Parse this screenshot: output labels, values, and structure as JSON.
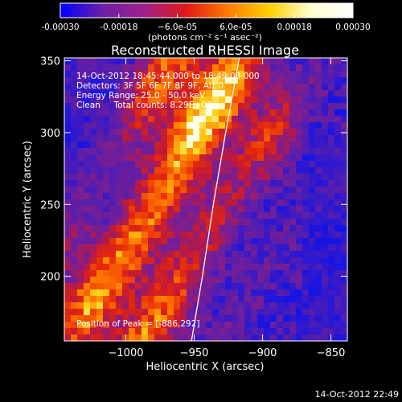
{
  "chart_data": {
    "type": "heatmap",
    "title": "Reconstructed RHESSI Image",
    "xlabel": "Heliocentric X (arcsec)",
    "ylabel": "Heliocentric Y (arcsec)",
    "xlim": [
      -1045,
      -838
    ],
    "ylim": [
      155,
      352
    ],
    "x_ticks": [
      -1000,
      -950,
      -900,
      -850
    ],
    "x_tick_labels": [
      "−1000",
      "−950",
      "−900",
      "−850"
    ],
    "y_ticks": [
      200,
      250,
      300,
      350
    ],
    "y_tick_labels": [
      "200",
      "250",
      "300",
      "350"
    ],
    "colorbar": {
      "range": [
        -0.0003,
        0.0003
      ],
      "ticks": [
        -0.0003,
        -0.00018,
        -6e-05,
        6e-05,
        0.00018,
        0.0003
      ],
      "tick_labels": [
        "-0.00030",
        "-0.00018",
        "−6.0e-05",
        "6.0e-05",
        "0.00018",
        "0.00030"
      ],
      "unit_label": "(photons cm⁻² s⁻¹ asec⁻²)",
      "colors": [
        "#0000ff",
        "#6a1fa8",
        "#a0208c",
        "#e01818",
        "#ff7a00",
        "#ffd000",
        "#ffffd0",
        "#ffffff"
      ]
    },
    "annotations": [
      "14-Oct-2012 18:45:44.000 to 18:49:08.000",
      "Detectors: 3F 5F 6F 7F 8F 9F, Att 0",
      "Energy Range: 25.0 - 50.0 keV",
      "Clean     Total counts: 8.29E+03"
    ],
    "peak_label": "Position of Peak = [-886,292]",
    "limb_curve": [
      [
        -952,
        155
      ],
      [
        -944,
        200
      ],
      [
        -936,
        250
      ],
      [
        -927,
        300
      ],
      [
        -917,
        352
      ]
    ],
    "grid": false
  },
  "footer_timestamp": "14-Oct-2012 22:49"
}
